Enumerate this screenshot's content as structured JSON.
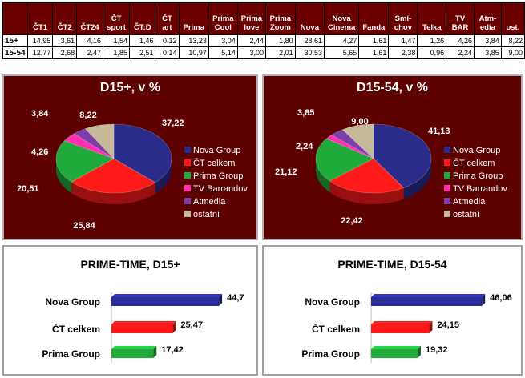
{
  "table": {
    "columns": [
      "ČT1",
      "ČT2",
      "ČT24",
      "ČT sport",
      "ČT:D",
      "ČT art",
      "Prima",
      "Prima Cool",
      "Prima love",
      "Prima Zoom",
      "Nova",
      "Nova Cinema",
      "Fanda",
      "Smí-chov",
      "Telka",
      "TV BAR",
      "Atm-edia",
      "ost."
    ],
    "column_lines": [
      [
        "ČT1"
      ],
      [
        "ČT2"
      ],
      [
        "ČT24"
      ],
      [
        "ČT",
        "sport"
      ],
      [
        "ČT:D"
      ],
      [
        "ČT",
        "art"
      ],
      [
        "Prima"
      ],
      [
        "Prima",
        "Cool"
      ],
      [
        "Prima",
        "love"
      ],
      [
        "Prima",
        "Zoom"
      ],
      [
        "Nova"
      ],
      [
        "Nova",
        "Cinema"
      ],
      [
        "Fanda"
      ],
      [
        "Smí-",
        "chov"
      ],
      [
        "Telka"
      ],
      [
        "TV",
        "BAR"
      ],
      [
        "Atm-",
        "edia"
      ],
      [
        "ost."
      ]
    ],
    "rows": [
      {
        "label": "15+",
        "values": [
          "14,95",
          "3,61",
          "4,16",
          "1,54",
          "1,46",
          "0,12",
          "13,23",
          "3,04",
          "2,44",
          "1,80",
          "28,61",
          "4,27",
          "1,61",
          "1,47",
          "1,26",
          "4,26",
          "3,84",
          "8,22"
        ]
      },
      {
        "label": "15-54",
        "values": [
          "12,77",
          "2,68",
          "2,47",
          "1,85",
          "2,51",
          "0,14",
          "10,97",
          "5,14",
          "3,00",
          "2,01",
          "30,53",
          "5,65",
          "1,61",
          "2,38",
          "0,96",
          "2,24",
          "3,85",
          "9,00"
        ]
      }
    ]
  },
  "chart_data": [
    {
      "type": "pie",
      "title": "D15+, v %",
      "categories": [
        "Nova Group",
        "ČT celkem",
        "Prima Group",
        "TV Barrandov",
        "Atmedia",
        "ostatní"
      ],
      "values": [
        37.22,
        25.84,
        20.51,
        4.26,
        3.84,
        8.22
      ],
      "value_labels": [
        "37,22",
        "25,84",
        "20,51",
        "4,26",
        "3,84",
        "8,22"
      ],
      "colors": [
        "#2b2b8c",
        "#ff1a1a",
        "#1faa3a",
        "#ff2fb0",
        "#7b3fa8",
        "#c8b89a"
      ],
      "legend": "right"
    },
    {
      "type": "pie",
      "title": "D15-54, v %",
      "categories": [
        "Nova Group",
        "ČT celkem",
        "Prima Group",
        "TV Barrandov",
        "Atmedia",
        "ostatní"
      ],
      "values": [
        41.13,
        22.42,
        21.12,
        2.24,
        3.85,
        9.0
      ],
      "value_labels": [
        "41,13",
        "22,42",
        "21,12",
        "2,24",
        "3,85",
        "9,00"
      ],
      "colors": [
        "#2b2b8c",
        "#ff1a1a",
        "#1faa3a",
        "#ff2fb0",
        "#7b3fa8",
        "#c8b89a"
      ],
      "legend": "right"
    },
    {
      "type": "bar",
      "orientation": "horizontal",
      "title": "PRIME-TIME, D15+",
      "categories": [
        "Nova Group",
        "ČT celkem",
        "Prima Group"
      ],
      "values": [
        44.7,
        25.47,
        17.42
      ],
      "value_labels": [
        "44,7",
        "25,47",
        "17,42"
      ],
      "colors": [
        "#2b2b9a",
        "#ff1a1a",
        "#1faa3a"
      ]
    },
    {
      "type": "bar",
      "orientation": "horizontal",
      "title": "PRIME-TIME, D15-54",
      "categories": [
        "Nova Group",
        "ČT celkem",
        "Prima Group"
      ],
      "values": [
        46.06,
        24.15,
        19.32
      ],
      "value_labels": [
        "46,06",
        "24,15",
        "19,32"
      ],
      "colors": [
        "#2b2b9a",
        "#ff1a1a",
        "#1faa3a"
      ]
    }
  ]
}
